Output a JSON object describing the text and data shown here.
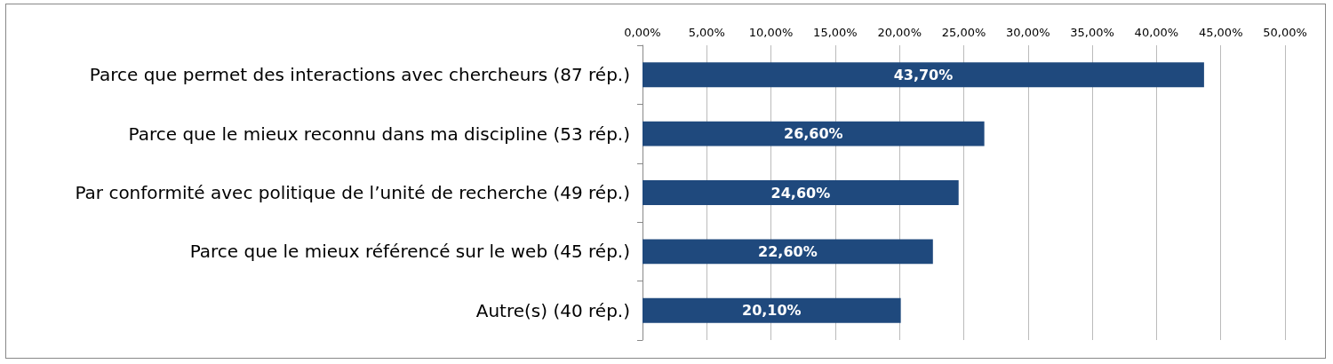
{
  "chart_data": {
    "type": "bar",
    "orientation": "horizontal",
    "categories": [
      "Parce que permet des interactions avec chercheurs (87 rép.)",
      "Parce que le mieux reconnu dans ma discipline (53 rép.)",
      "Par conformité avec politique de l’unité de recherche (49 rép.)",
      "Parce que le mieux référencé sur le web (45 rép.)",
      "Autre(s) (40 rép.)"
    ],
    "values": [
      43.7,
      26.6,
      24.6,
      22.6,
      20.1
    ],
    "value_labels": [
      "43,70%",
      "26,60%",
      "24,60%",
      "22,60%",
      "20,10%"
    ],
    "color": "#1f497d",
    "xlim": [
      0,
      50
    ],
    "xticks": [
      {
        "value": 0,
        "label": "0,00%"
      },
      {
        "value": 5,
        "label": "5,00%"
      },
      {
        "value": 10,
        "label": "10,00%"
      },
      {
        "value": 15,
        "label": "15,00%"
      },
      {
        "value": 20,
        "label": "20,00%"
      },
      {
        "value": 25,
        "label": "25,00%"
      },
      {
        "value": 30,
        "label": "30,00%"
      },
      {
        "value": 35,
        "label": "35,00%"
      },
      {
        "value": 40,
        "label": "40,00%"
      },
      {
        "value": 45,
        "label": "45,00%"
      },
      {
        "value": 50,
        "label": "50,00%"
      }
    ],
    "grid": "x"
  }
}
